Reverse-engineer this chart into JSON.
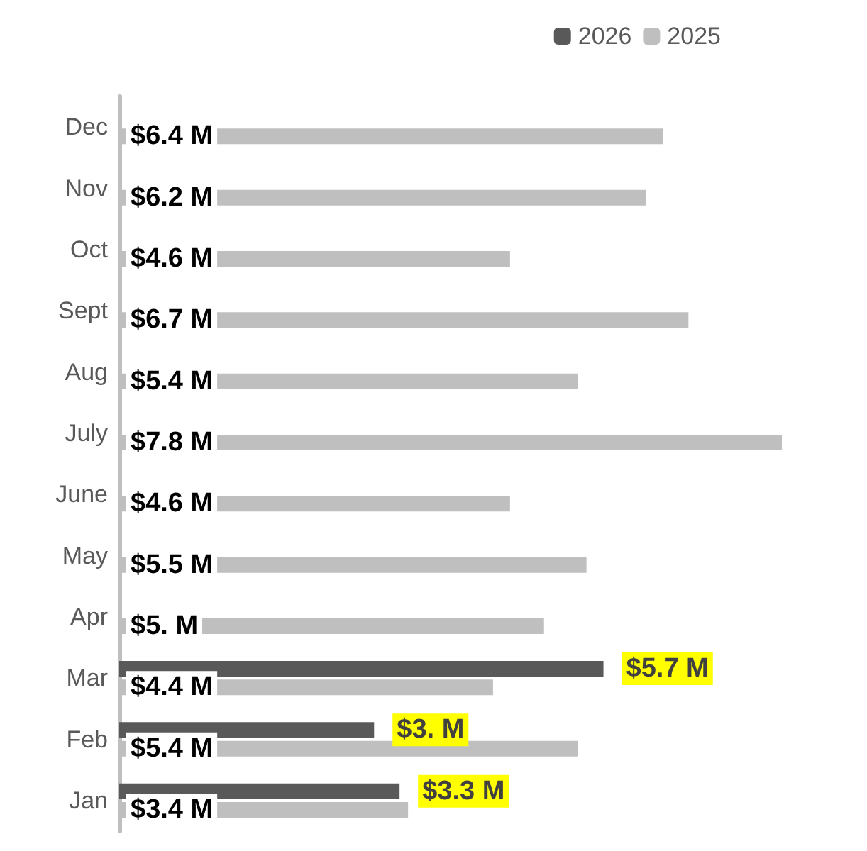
{
  "chart_data": {
    "type": "bar",
    "orientation": "horizontal",
    "categories": [
      "Dec",
      "Nov",
      "Oct",
      "Sept",
      "Aug",
      "July",
      "June",
      "May",
      "Apr",
      "Mar",
      "Feb",
      "Jan"
    ],
    "series": [
      {
        "name": "2026",
        "color": "#595959",
        "values": [
          null,
          null,
          null,
          null,
          null,
          null,
          null,
          null,
          null,
          5.7,
          3,
          3.3
        ],
        "value_labels": [
          null,
          null,
          null,
          null,
          null,
          null,
          null,
          null,
          null,
          "$5.7 M",
          "$3. M",
          "$3.3 M"
        ]
      },
      {
        "name": "2025",
        "color": "#bfbfbf",
        "values": [
          6.4,
          6.2,
          4.6,
          6.7,
          5.4,
          7.8,
          4.6,
          5.5,
          5,
          4.4,
          5.4,
          3.4
        ],
        "value_labels": [
          "$6.4 M",
          "$6.2 M",
          "$4.6 M",
          "$6.7 M",
          "$5.4 M",
          "$7.8 M",
          "$4.6 M",
          "$5.5 M",
          "$5. M",
          "$4.4 M",
          "$5.4 M",
          "$3.4 M"
        ]
      }
    ],
    "legend": "top right"
  }
}
